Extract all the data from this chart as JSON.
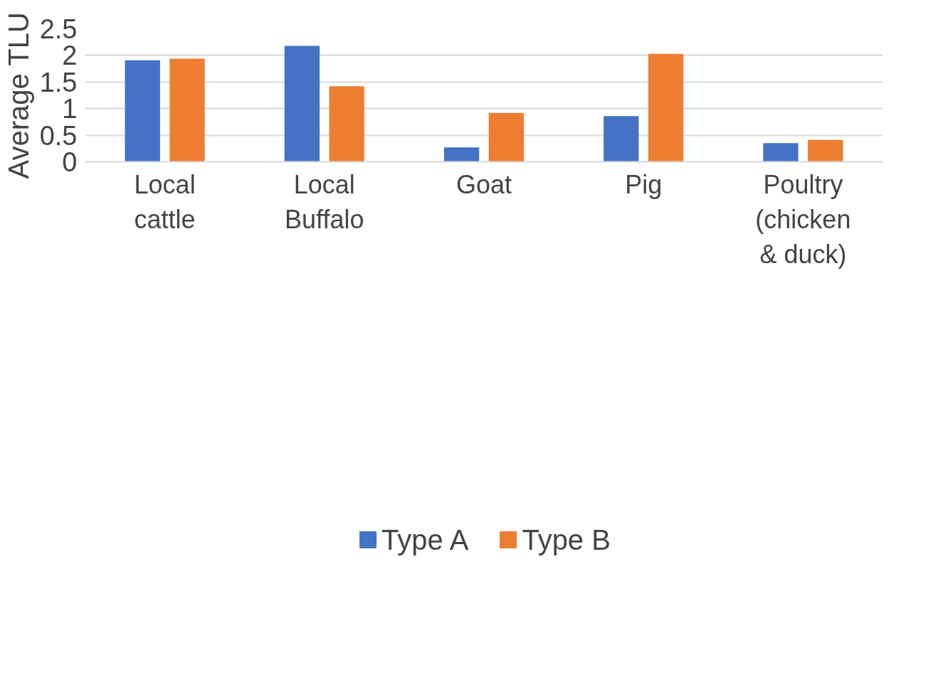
{
  "chart_data": {
    "type": "bar",
    "ylabel": "Average TLU",
    "categories": [
      "Local cattle",
      "Local Buffalo",
      "Goat",
      "Pig",
      "Poultry (chicken & duck)"
    ],
    "series": [
      {
        "name": "Type A",
        "color": "#4472c4",
        "values": [
          1.91,
          2.18,
          0.27,
          0.86,
          0.35
        ]
      },
      {
        "name": "Type B",
        "color": "#ed7d31",
        "values": [
          1.94,
          1.42,
          0.92,
          2.03,
          0.41
        ]
      }
    ],
    "ylim": [
      0,
      2.5
    ],
    "yticks": [
      0,
      0.5,
      1,
      1.5,
      2,
      2.5
    ],
    "grid": "y",
    "legend": "bottom"
  }
}
